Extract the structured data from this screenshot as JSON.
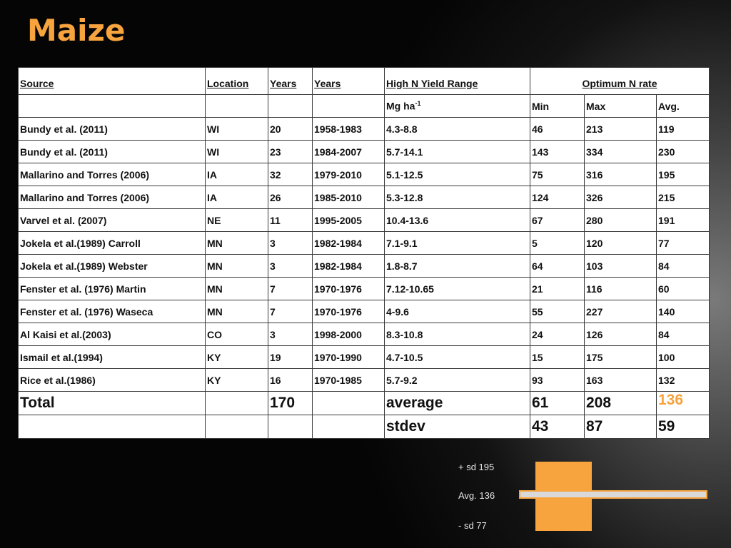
{
  "title": "Maize",
  "table": {
    "header1": {
      "source": "Source",
      "location": "Location",
      "years_n": "Years",
      "years_range": "Years",
      "yield": "High N Yield Range",
      "optimum": "Optimum N rate"
    },
    "header2": {
      "unit_base": "Mg ha",
      "unit_sup": "-1",
      "min": "Min",
      "max": "Max",
      "avg": "Avg."
    },
    "rows": [
      {
        "source": "Bundy et al. (2011)",
        "location": "WI",
        "years_n": "20",
        "years_range": "1958-1983",
        "yield": "4.3-8.8",
        "min": "46",
        "max": "213",
        "avg": "119"
      },
      {
        "source": "Bundy et al. (2011)",
        "location": "WI",
        "years_n": "23",
        "years_range": "1984-2007",
        "yield": "5.7-14.1",
        "min": "143",
        "max": "334",
        "avg": "230"
      },
      {
        "source": "Mallarino and Torres (2006)",
        "location": "IA",
        "years_n": "32",
        "years_range": "1979-2010",
        "yield": "5.1-12.5",
        "min": "75",
        "max": "316",
        "avg": "195"
      },
      {
        "source": "Mallarino and Torres (2006)",
        "location": "IA",
        "years_n": "26",
        "years_range": "1985-2010",
        "yield": "5.3-12.8",
        "min": "124",
        "max": "326",
        "avg": "215"
      },
      {
        "source": "Varvel et al. (2007)",
        "location": "NE",
        "years_n": "11",
        "years_range": "1995-2005",
        "yield": "10.4-13.6",
        "min": "67",
        "max": "280",
        "avg": "191"
      },
      {
        "source": "Jokela et al.(1989) Carroll",
        "location": "MN",
        "years_n": "3",
        "years_range": "1982-1984",
        "yield": "7.1-9.1",
        "min": "5",
        "max": "120",
        "avg": "77"
      },
      {
        "source": "Jokela et al.(1989) Webster",
        "location": "MN",
        "years_n": "3",
        "years_range": "1982-1984",
        "yield": "1.8-8.7",
        "min": "64",
        "max": "103",
        "avg": "84"
      },
      {
        "source": "Fenster et al. (1976) Martin",
        "location": "MN",
        "years_n": "7",
        "years_range": "1970-1976",
        "yield": "7.12-10.65",
        "min": "21",
        "max": "116",
        "avg": "60"
      },
      {
        "source": "Fenster et al. (1976) Waseca",
        "location": "MN",
        "years_n": "7",
        "years_range": "1970-1976",
        "yield": "4-9.6",
        "min": "55",
        "max": "227",
        "avg": "140"
      },
      {
        "source": "Al Kaisi et al.(2003)",
        "location": "CO",
        "years_n": "3",
        "years_range": "1998-2000",
        "yield": "8.3-10.8",
        "min": "24",
        "max": "126",
        "avg": "84"
      },
      {
        "source": "Ismail et al.(1994)",
        "location": "KY",
        "years_n": "19",
        "years_range": "1970-1990",
        "yield": "4.7-10.5",
        "min": "15",
        "max": "175",
        "avg": "100"
      },
      {
        "source": "Rice et al.(1986)",
        "location": "KY",
        "years_n": "16",
        "years_range": "1970-1985",
        "yield": "5.7-9.2",
        "min": "93",
        "max": "163",
        "avg": "132"
      }
    ],
    "total": {
      "label": "Total",
      "years_n": "170",
      "stat": "average",
      "min": "61",
      "max": "208",
      "avg": "136"
    },
    "stdev": {
      "stat": "stdev",
      "min": "43",
      "max": "87",
      "avg": "59"
    }
  },
  "legend": {
    "plus": "+ sd 195",
    "avg": "Avg. 136",
    "minus": "- sd 77"
  },
  "colors": {
    "accent": "#f7a33e",
    "bar": "#d9d9d9"
  }
}
